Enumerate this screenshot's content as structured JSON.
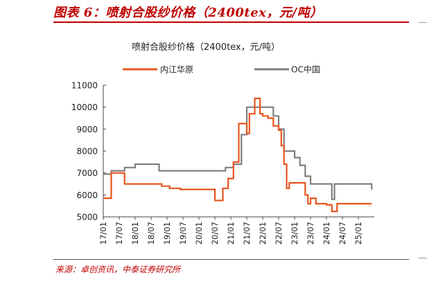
{
  "header": {
    "figure_title": "图表 6：喷射合股纱价格（2400tex，元/吨）"
  },
  "footer": {
    "source": "来源：卓创资讯，中泰证券研究所"
  },
  "chart_data": {
    "type": "line",
    "title": "喷射合股纱价格（2400tex，元/吨）",
    "xlabel": "",
    "ylabel": "",
    "ylim": [
      5000,
      11000
    ],
    "yticks": [
      5000,
      6000,
      7000,
      8000,
      9000,
      10000,
      11000
    ],
    "ytick_labels": [
      "5000",
      "6000",
      "7000",
      "8000",
      "9000",
      "10000",
      "11000"
    ],
    "xlim": [
      "2017-01",
      "2025-07"
    ],
    "xtick_labels": [
      "17/01",
      "17/07",
      "18/01",
      "18/07",
      "19/01",
      "19/07",
      "20/01",
      "20/07",
      "21/01",
      "21/07",
      "22/01",
      "22/07",
      "23/01",
      "23/07",
      "24/01",
      "24/07",
      "25/01"
    ],
    "grid": false,
    "legend_position": "top",
    "series": [
      {
        "name": "内江华原",
        "color": "#e8541e",
        "step": true,
        "points": [
          [
            "2017-01",
            5850
          ],
          [
            "2017-04",
            7000
          ],
          [
            "2017-09",
            6500
          ],
          [
            "2018-05",
            6500
          ],
          [
            "2018-11",
            6400
          ],
          [
            "2019-02",
            6300
          ],
          [
            "2019-06",
            6250
          ],
          [
            "2020-06",
            6250
          ],
          [
            "2020-07",
            5750
          ],
          [
            "2020-10",
            6300
          ],
          [
            "2020-12",
            6750
          ],
          [
            "2021-02",
            7500
          ],
          [
            "2021-04",
            9250
          ],
          [
            "2021-07",
            8800
          ],
          [
            "2021-08",
            9700
          ],
          [
            "2021-10",
            10400
          ],
          [
            "2021-12",
            9700
          ],
          [
            "2022-01",
            9600
          ],
          [
            "2022-03",
            9500
          ],
          [
            "2022-05",
            9150
          ],
          [
            "2022-07",
            8950
          ],
          [
            "2022-08",
            8250
          ],
          [
            "2022-09",
            7400
          ],
          [
            "2022-10",
            6300
          ],
          [
            "2022-11",
            6550
          ],
          [
            "2023-05",
            6000
          ],
          [
            "2023-06",
            5600
          ],
          [
            "2023-07",
            5850
          ],
          [
            "2023-09",
            5600
          ],
          [
            "2024-01",
            5550
          ],
          [
            "2024-03",
            5250
          ],
          [
            "2024-05",
            5600
          ],
          [
            "2025-06",
            5600
          ]
        ]
      },
      {
        "name": "OC中国",
        "color": "#7f7f7f",
        "step": true,
        "points": [
          [
            "2017-01",
            6950
          ],
          [
            "2017-04",
            7100
          ],
          [
            "2017-09",
            7250
          ],
          [
            "2018-01",
            7400
          ],
          [
            "2018-10",
            7100
          ],
          [
            "2020-11",
            7250
          ],
          [
            "2021-02",
            7400
          ],
          [
            "2021-05",
            8750
          ],
          [
            "2021-07",
            10000
          ],
          [
            "2022-05",
            9600
          ],
          [
            "2022-07",
            9000
          ],
          [
            "2022-09",
            8000
          ],
          [
            "2023-01",
            7700
          ],
          [
            "2023-03",
            7350
          ],
          [
            "2023-05",
            6850
          ],
          [
            "2023-07",
            6500
          ],
          [
            "2024-03",
            5800
          ],
          [
            "2024-04",
            6500
          ],
          [
            "2025-06",
            6250
          ]
        ]
      }
    ]
  }
}
